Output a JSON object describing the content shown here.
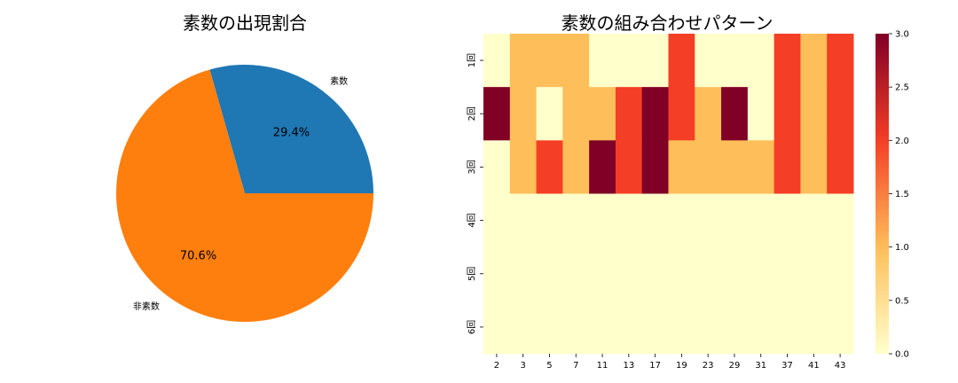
{
  "chart_data": [
    {
      "type": "pie",
      "title": "素数の出現割合",
      "labels": [
        "素数",
        "非素数"
      ],
      "values": [
        29.4,
        70.6
      ],
      "value_labels": [
        "29.4%",
        "70.6%"
      ],
      "colors": [
        "#1f77b4",
        "#ff7f0e"
      ]
    },
    {
      "type": "heatmap",
      "title": "素数の組み合わせパターン",
      "x": [
        "2",
        "3",
        "5",
        "7",
        "11",
        "13",
        "17",
        "19",
        "23",
        "29",
        "31",
        "37",
        "41",
        "43"
      ],
      "y": [
        "1回",
        "2回",
        "3回",
        "4回",
        "5回",
        "6回"
      ],
      "values": [
        [
          0,
          1,
          1,
          1,
          0,
          0,
          0,
          2,
          0,
          0,
          0,
          2,
          1,
          2
        ],
        [
          3,
          1,
          0,
          1,
          1,
          2,
          3,
          2,
          1,
          3,
          0,
          2,
          1,
          2
        ],
        [
          0,
          1,
          2,
          1,
          3,
          2,
          3,
          1,
          1,
          1,
          1,
          2,
          1,
          2
        ],
        [
          0,
          0,
          0,
          0,
          0,
          0,
          0,
          0,
          0,
          0,
          0,
          0,
          0,
          0
        ],
        [
          0,
          0,
          0,
          0,
          0,
          0,
          0,
          0,
          0,
          0,
          0,
          0,
          0,
          0
        ],
        [
          0,
          0,
          0,
          0,
          0,
          0,
          0,
          0,
          0,
          0,
          0,
          0,
          0,
          0
        ]
      ],
      "colorscale": "YlOrRd",
      "vmin": 0,
      "vmax": 3,
      "colorbar_ticks": [
        "0.0",
        "0.5",
        "1.0",
        "1.5",
        "2.0",
        "2.5",
        "3.0"
      ]
    }
  ]
}
